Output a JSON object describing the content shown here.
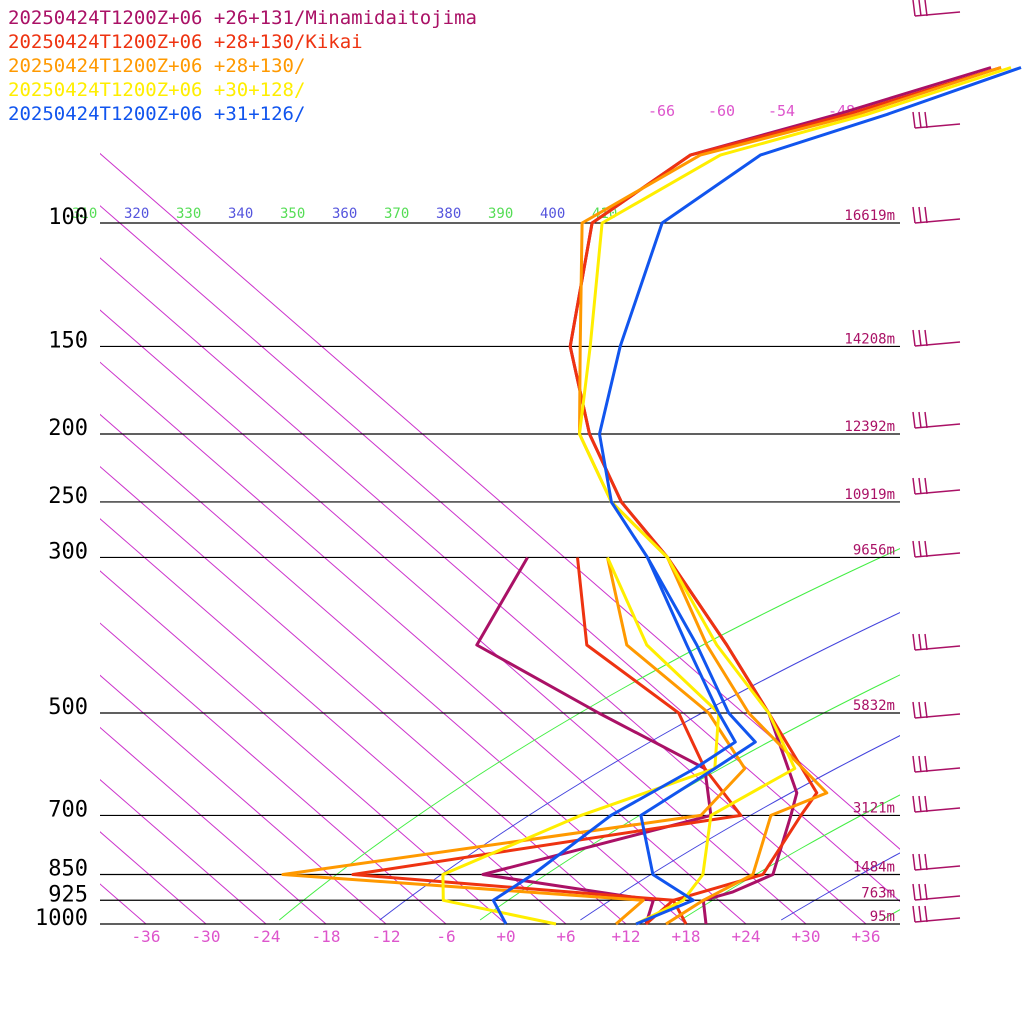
{
  "chart_data": {
    "type": "line",
    "title": "",
    "xlabel": "",
    "ylabel": "",
    "legend_placement": "top-left",
    "x_scale": "skewed temperature (degC)",
    "y_scale": "log pressure (hPa)",
    "xlim": [
      -40,
      40
    ],
    "ylim": [
      1000,
      100
    ],
    "x_ticks": [
      "-36",
      "-30",
      "-24",
      "-18",
      "-12",
      "-6",
      "+0",
      "+6",
      "+12",
      "+18",
      "+24",
      "+30",
      "+36"
    ],
    "pressure_levels": [
      {
        "label": "100",
        "p": 100,
        "height": "16619m"
      },
      {
        "label": "150",
        "p": 150,
        "height": "14208m"
      },
      {
        "label": "200",
        "p": 200,
        "height": "12392m"
      },
      {
        "label": "250",
        "p": 250,
        "height": "10919m"
      },
      {
        "label": "300",
        "p": 300,
        "height": "9656m"
      },
      {
        "label": "500",
        "p": 500,
        "height": "5832m"
      },
      {
        "label": "700",
        "p": 700,
        "height": "3121m"
      },
      {
        "label": "850",
        "p": 850,
        "height": "1484m"
      },
      {
        "label": "925",
        "p": 925,
        "height": "763m"
      },
      {
        "label": "1000",
        "p": 1000,
        "height": "95m"
      }
    ],
    "isotherm_labels": [
      "-66",
      "-60",
      "-54",
      "-48"
    ],
    "theta_labels": [
      "310",
      "320",
      "330",
      "340",
      "350",
      "360",
      "370",
      "380",
      "390",
      "400",
      "410"
    ],
    "series": [
      {
        "name": "20250424T1200Z+06 +26+131/Minamidaitojima",
        "color": "#aa1166",
        "temperature": [
          [
            1000,
            20
          ],
          [
            925,
            17
          ],
          [
            900,
            19
          ],
          [
            850,
            21
          ],
          [
            700,
            16
          ],
          [
            650,
            14
          ],
          [
            500,
            2
          ],
          [
            400,
            -10
          ],
          [
            300,
            -26
          ],
          [
            250,
            -37
          ],
          [
            200,
            -48
          ],
          [
            150,
            -60
          ],
          [
            100,
            -72
          ],
          [
            80,
            -70
          ],
          [
            70,
            -60
          ],
          [
            60,
            -50
          ]
        ],
        "dewpoint": [
          [
            1000,
            14
          ],
          [
            925,
            12
          ],
          [
            850,
            -8
          ],
          [
            700,
            8
          ],
          [
            600,
            2
          ],
          [
            500,
            -15
          ],
          [
            400,
            -35
          ],
          [
            300,
            -40
          ]
        ]
      },
      {
        "name": "20250424T1200Z+06 +28+130/Kikai",
        "color": "#ee3311",
        "temperature": [
          [
            1000,
            18
          ],
          [
            925,
            14
          ],
          [
            850,
            20
          ],
          [
            700,
            17
          ],
          [
            650,
            16
          ],
          [
            500,
            2
          ],
          [
            400,
            -10
          ],
          [
            300,
            -26
          ],
          [
            250,
            -37
          ],
          [
            200,
            -48
          ],
          [
            150,
            -60
          ],
          [
            100,
            -72
          ],
          [
            80,
            -70
          ],
          [
            70,
            -59
          ],
          [
            60,
            -49
          ]
        ],
        "dewpoint": [
          [
            1000,
            14
          ],
          [
            925,
            14
          ],
          [
            850,
            -21
          ],
          [
            700,
            11
          ],
          [
            600,
            2
          ],
          [
            500,
            -7
          ],
          [
            400,
            -24
          ],
          [
            300,
            -35
          ]
        ]
      },
      {
        "name": "20250424T1200Z+06 +28+130/",
        "color": "#ff9900",
        "temperature": [
          [
            1000,
            16
          ],
          [
            925,
            17
          ],
          [
            850,
            19
          ],
          [
            700,
            14
          ],
          [
            650,
            17
          ],
          [
            500,
            0
          ],
          [
            400,
            -12
          ],
          [
            300,
            -26
          ],
          [
            250,
            -38
          ],
          [
            200,
            -49
          ],
          [
            150,
            -59
          ],
          [
            100,
            -73
          ],
          [
            80,
            -69
          ],
          [
            70,
            -58
          ],
          [
            60,
            -49
          ]
        ],
        "dewpoint": [
          [
            1000,
            11
          ],
          [
            925,
            11
          ],
          [
            850,
            -28
          ],
          [
            700,
            7
          ],
          [
            600,
            6
          ],
          [
            500,
            -4
          ],
          [
            400,
            -20
          ],
          [
            300,
            -32
          ]
        ]
      },
      {
        "name": "20250424T1200Z+06 +30+128/",
        "color": "#ffee00",
        "temperature": [
          [
            1000,
            13
          ],
          [
            925,
            15
          ],
          [
            850,
            14
          ],
          [
            700,
            8
          ],
          [
            600,
            11
          ],
          [
            500,
            2
          ],
          [
            400,
            -11
          ],
          [
            300,
            -26
          ],
          [
            250,
            -38
          ],
          [
            200,
            -49
          ],
          [
            150,
            -58
          ],
          [
            100,
            -71
          ],
          [
            80,
            -67
          ],
          [
            70,
            -57
          ],
          [
            60,
            -48
          ]
        ],
        "dewpoint": [
          [
            1000,
            5
          ],
          [
            925,
            -9
          ],
          [
            850,
            -12
          ],
          [
            700,
            -5
          ],
          [
            600,
            3
          ],
          [
            500,
            -3
          ],
          [
            400,
            -18
          ],
          [
            300,
            -32
          ]
        ]
      },
      {
        "name": "20250424T1200Z+06 +31+126/",
        "color": "#1155ee",
        "temperature": [
          [
            1000,
            13
          ],
          [
            925,
            16
          ],
          [
            850,
            9
          ],
          [
            700,
            1
          ],
          [
            600,
            3
          ],
          [
            550,
            4
          ],
          [
            500,
            -2
          ],
          [
            400,
            -13
          ],
          [
            300,
            -28
          ],
          [
            250,
            -38
          ],
          [
            200,
            -47
          ],
          [
            150,
            -55
          ],
          [
            100,
            -65
          ],
          [
            80,
            -63
          ],
          [
            70,
            -55
          ],
          [
            60,
            -47
          ]
        ],
        "dewpoint": [
          [
            1000,
            0
          ],
          [
            925,
            -4
          ],
          [
            850,
            -3
          ],
          [
            700,
            -2
          ],
          [
            600,
            1
          ],
          [
            550,
            2
          ],
          [
            500,
            -3
          ],
          [
            400,
            -14
          ],
          [
            300,
            -28
          ]
        ]
      }
    ],
    "wind_barbs_visible": true
  }
}
